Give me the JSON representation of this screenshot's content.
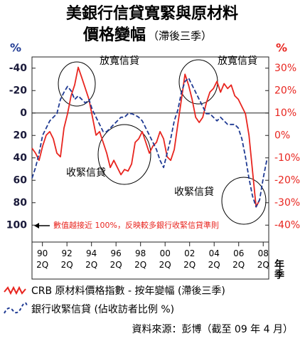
{
  "chart_data": {
    "type": "line",
    "title": [
      "美銀行信貸寬緊與原材料",
      "價格變幅"
    ],
    "subtitle": "（滯後三季）",
    "y_label": "%",
    "y2_label": "%",
    "x_label": "年季",
    "x": [
      1989.4,
      1989.69,
      1989.98,
      1990.27,
      1990.56,
      1990.85,
      1991.14,
      1991.43,
      1991.72,
      1992.01,
      1992.3,
      1992.59,
      1992.88,
      1993.17,
      1993.46,
      1993.75,
      1994.04,
      1994.33,
      1994.62,
      1994.91,
      1995.2,
      1995.49,
      1995.78,
      1996.07,
      1996.36,
      1996.65,
      1996.94,
      1997.23,
      1997.52,
      1997.81,
      1998.1,
      1998.39,
      1998.68,
      1998.97,
      1999.26,
      1999.55,
      1999.84,
      2000.13,
      2000.42,
      2000.71,
      2001.0,
      2001.29,
      2001.58,
      2001.87,
      2002.16,
      2002.45,
      2002.74,
      2003.03,
      2003.32,
      2003.61,
      2003.9,
      2004.19,
      2004.48,
      2004.77,
      2005.06,
      2005.35,
      2005.64,
      2005.93,
      2006.22,
      2006.51,
      2006.8,
      2007.09,
      2007.38,
      2007.67,
      2007.96,
      2008.25,
      2008.54
    ],
    "series": [
      {
        "name": "CRB 原材料價格指數 - 按年變幅 (滯後三季)",
        "color": "#e8251f",
        "line_style": "solid",
        "axis": "y2",
        "values": [
          -5.7,
          -7.9,
          -11.1,
          -4.7,
          0.1,
          1.7,
          -1.5,
          -7.9,
          -9.5,
          3.3,
          9.7,
          17.7,
          22.5,
          30.4,
          25.7,
          20.9,
          16.1,
          8.1,
          0.1,
          1.7,
          -3.1,
          -7.9,
          -14.3,
          -11.1,
          -14.3,
          -17.5,
          -15.2,
          -15.9,
          -12.7,
          -3.1,
          -1.5,
          1.7,
          -3.1,
          -7.9,
          -4.7,
          -3.1,
          1.7,
          -1.5,
          -9.5,
          -11.1,
          -6.3,
          4.9,
          16.1,
          27.3,
          22.5,
          16.1,
          8.1,
          5.8,
          8.1,
          14.5,
          19.3,
          20.9,
          24.1,
          19.3,
          23.1,
          20.9,
          22.5,
          17.7,
          16.1,
          12.9,
          9.7,
          0.1,
          -15.9,
          -31.9,
          -28.7,
          null,
          null
        ]
      },
      {
        "name": "銀行收緊信貸 (佔收訪者比例 %)",
        "color": "#1f3a93",
        "line_style": "dashed",
        "values": [
          58.2,
          48.6,
          35.8,
          19.8,
          13.4,
          7.0,
          3.8,
          0.6,
          -12.1,
          -18.5,
          -23.7,
          -19.8,
          -12.1,
          -15.3,
          -12.1,
          -8.9,
          -12.1,
          -2.6,
          3.8,
          10.2,
          16.6,
          16.6,
          13.4,
          10.2,
          7.0,
          3.8,
          3.8,
          0.6,
          0.6,
          1.9,
          3.8,
          7.0,
          13.4,
          19.8,
          26.2,
          32.6,
          42.2,
          48.6,
          35.8,
          23.0,
          7.0,
          -2.6,
          -18.5,
          -28.1,
          -31.3,
          -24.9,
          -18.5,
          -12.1,
          -5.8,
          0.6,
          0.6,
          3.8,
          7.0,
          3.8,
          7.0,
          10.2,
          10.2,
          10.2,
          13.4,
          23.0,
          39.0,
          58.2,
          74.1,
          83.7,
          77.3,
          58.2,
          42.2
        ]
      }
    ],
    "xlim": [
      1989.4,
      2008.7
    ],
    "xticks": [
      {
        "value": 1990.25,
        "label": "90\n2Q"
      },
      {
        "value": 1992.25,
        "label": "92\n2Q"
      },
      {
        "value": 1994.25,
        "label": "94\n2Q"
      },
      {
        "value": 1996.25,
        "label": "96\n2Q"
      },
      {
        "value": 1998.25,
        "label": "98\n2Q"
      },
      {
        "value": 2000.25,
        "label": "00\n2Q"
      },
      {
        "value": 2002.25,
        "label": "02\n2Q"
      },
      {
        "value": 2004.25,
        "label": "04\n2Q"
      },
      {
        "value": 2006.25,
        "label": "06\n2Q"
      },
      {
        "value": 2008.25,
        "label": "08\n2Q"
      }
    ],
    "ylim": [
      110,
      -50
    ],
    "yticks": [
      -40,
      -20,
      0,
      20,
      40,
      60,
      80,
      100
    ],
    "y2lim": [
      -45,
      35
    ],
    "y2ticks": [
      {
        "value": 30,
        "label": "30%"
      },
      {
        "value": 20,
        "label": "20%"
      },
      {
        "value": 10,
        "label": "10%"
      },
      {
        "value": 0,
        "label": "0%"
      },
      {
        "value": -10,
        "label": "-10%"
      },
      {
        "value": -20,
        "label": "-20%"
      },
      {
        "value": -30,
        "label": "-30%"
      },
      {
        "value": -40,
        "label": "-40%"
      }
    ],
    "annotations": [
      "放寬信貸",
      "放寬信貸",
      "收緊信貸",
      "收緊信貸",
      "數值越接近 100%，反映較多銀行收緊信貸準則"
    ],
    "source": "資料來源：彭博（截至 09 年 4 月）"
  }
}
